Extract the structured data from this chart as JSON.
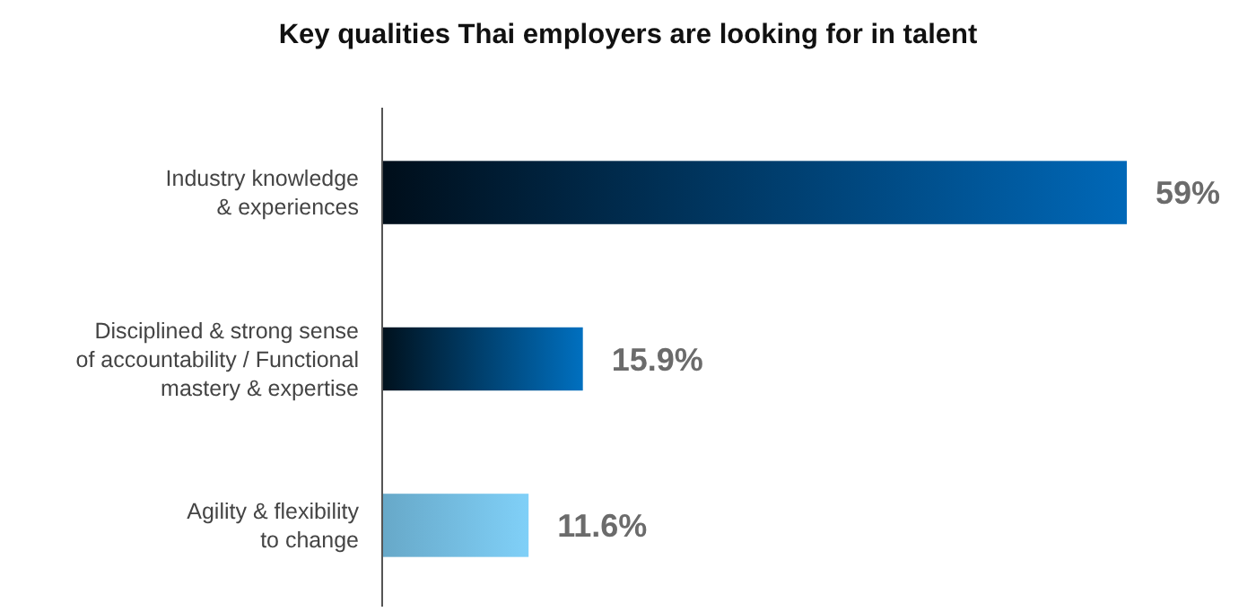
{
  "chart_data": {
    "type": "bar",
    "orientation": "horizontal",
    "title": "Key qualities Thai employers are looking for in talent",
    "categories": [
      "Industry knowledge\n& experiences",
      "Disciplined & strong sense\nof accountability / Functional\nmastery & expertise",
      "Agility & flexibility\nto change"
    ],
    "values": [
      59,
      15.9,
      11.6
    ],
    "colors": [
      "#0068b8",
      "#0070c0",
      "#80d0f8"
    ],
    "value_labels": [
      "59%",
      "15.9%",
      "11.6%"
    ]
  }
}
